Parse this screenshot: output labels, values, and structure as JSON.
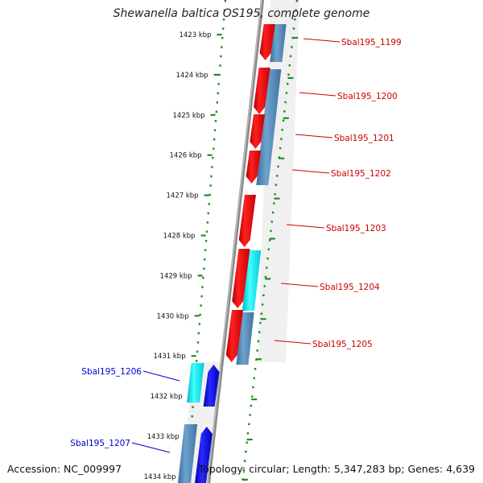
{
  "title": "Shewanella baltica OS195, complete genome",
  "footer": {
    "accession": "Accession: NC_009997",
    "summary": "Topology: circular; Length: 5,347,283 bp; Genes: 4,639"
  },
  "colors": {
    "forward_cds": "#ee0000",
    "forward_gene": "#4682b4",
    "reverse_cds": "#0000ee",
    "reverse_gene": "#00dddd",
    "forward_label": "#cc0000",
    "reverse_label": "#0000cc",
    "tick": "#228b22",
    "backbone": "#888888"
  },
  "ticks": [
    "1423 kbp",
    "1424 kbp",
    "1425 kbp",
    "1426 kbp",
    "1427 kbp",
    "1428 kbp",
    "1429 kbp",
    "1430 kbp",
    "1431 kbp",
    "1432 kbp",
    "1433 kbp",
    "1434 kbp"
  ],
  "forward_genes": [
    {
      "label": "Sbal195_1199"
    },
    {
      "label": "Sbal195_1200"
    },
    {
      "label": "Sbal195_1201"
    },
    {
      "label": "Sbal195_1202"
    },
    {
      "label": "Sbal195_1203"
    },
    {
      "label": "Sbal195_1204"
    },
    {
      "label": "Sbal195_1205"
    }
  ],
  "reverse_genes": [
    {
      "label": "Sbal195_1206"
    },
    {
      "label": "Sbal195_1207"
    }
  ]
}
